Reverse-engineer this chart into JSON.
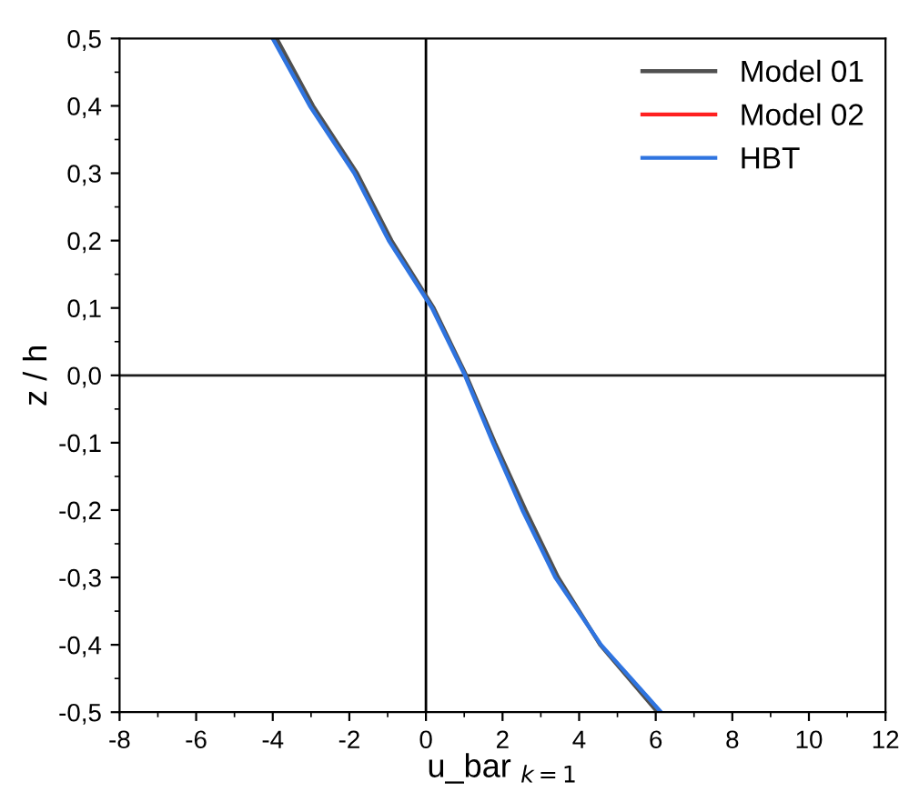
{
  "chart_data": {
    "type": "line",
    "xlabel": "u_bar $_{k=1}$",
    "ylabel": "z / h",
    "xlim": [
      -8,
      12
    ],
    "xticks": [
      -8,
      -6,
      -4,
      -2,
      0,
      2,
      4,
      6,
      8,
      10,
      12
    ],
    "ylim": [
      -0.5,
      0.5
    ],
    "yticks": [
      {
        "value": -0.5,
        "label": "-0,5"
      },
      {
        "value": -0.4,
        "label": "-0,4"
      },
      {
        "value": -0.3,
        "label": "-0,3"
      },
      {
        "value": -0.2,
        "label": "-0,2"
      },
      {
        "value": -0.1,
        "label": "-0,1"
      },
      {
        "value": 0,
        "label": "0,0"
      },
      {
        "value": 0.1,
        "label": "0,1"
      },
      {
        "value": 0.2,
        "label": "0,2"
      },
      {
        "value": 0.3,
        "label": "0,3"
      },
      {
        "value": 0.4,
        "label": "0,4"
      },
      {
        "value": 0.5,
        "label": "0,5"
      }
    ],
    "series": [
      {
        "name": "Model 01",
        "color": "#505050",
        "x": [
          -3.9,
          -2.95,
          -1.8,
          -0.9,
          0.2,
          1.05,
          1.8,
          2.6,
          3.45,
          4.55,
          6.05
        ],
        "values": [
          0.5,
          0.4,
          0.3,
          0.2,
          0.1,
          0,
          -0.1,
          -0.2,
          -0.3,
          -0.4,
          -0.5
        ]
      },
      {
        "name": "Model 02",
        "color": "#ff2020",
        "x": [
          null,
          null,
          null,
          null,
          null,
          null,
          null,
          null,
          null,
          null,
          null
        ],
        "values": [
          null,
          null,
          null,
          null,
          null,
          null,
          null,
          null,
          null,
          null,
          null
        ]
      },
      {
        "name": "HBT",
        "color": "#2f74e0",
        "x": [
          -4.0,
          -3.03,
          -1.87,
          -0.97,
          0.16,
          1.02,
          1.75,
          2.52,
          3.38,
          4.57,
          6.14
        ],
        "values": [
          0.5,
          0.4,
          0.3,
          0.2,
          0.1,
          0,
          -0.1,
          -0.2,
          -0.3,
          -0.4,
          -0.5
        ]
      }
    ],
    "ref_lines": [
      {
        "axis": "x",
        "value": 0,
        "color": "#000000"
      },
      {
        "axis": "y",
        "value": 0,
        "color": "#1c1c1c"
      }
    ],
    "grid": false,
    "legend": "top right"
  }
}
